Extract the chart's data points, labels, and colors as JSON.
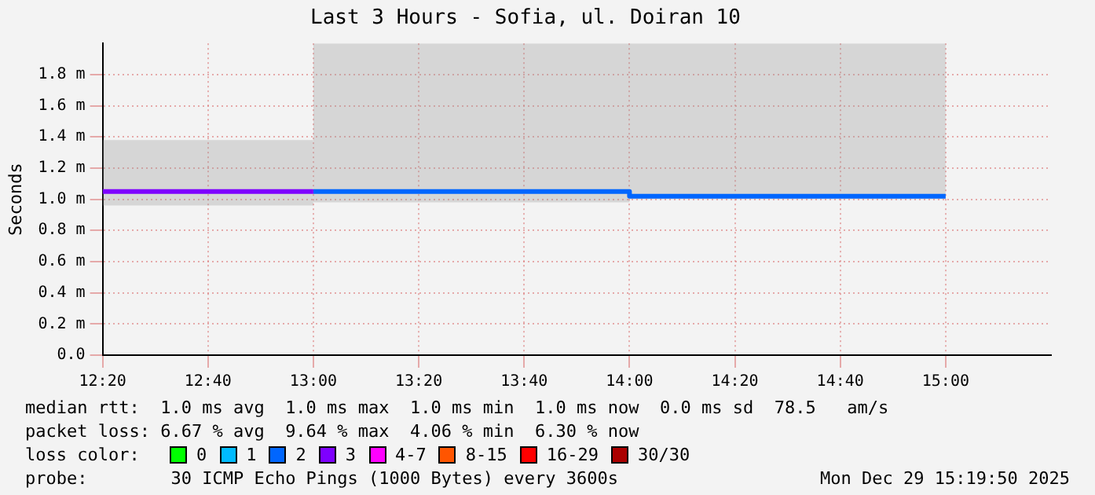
{
  "chart_data": {
    "type": "line",
    "title": "Last 3 Hours - Sofia, ul. Doiran 10",
    "ylabel": "Seconds",
    "series": [
      {
        "color": "#7e00ff",
        "x": [
          12.3333,
          13
        ],
        "values": [
          1.05,
          1.05
        ],
        "lower": [
          0.96,
          0.96
        ],
        "upper": [
          1.38,
          1.38
        ]
      },
      {
        "color": "#0066ff",
        "x": [
          13,
          14,
          14,
          15
        ],
        "values": [
          1.05,
          1.05,
          1.02,
          1.02
        ],
        "lower": [
          0.98,
          0.98,
          1.0,
          1.0
        ],
        "upper": [
          2.0,
          2.0,
          2.0,
          2.0
        ]
      }
    ],
    "xlim": [
      12.3333,
      15.3333
    ],
    "xticks": [
      {
        "value": 12.3333,
        "label": "12:20"
      },
      {
        "value": 12.6667,
        "label": "12:40"
      },
      {
        "value": 13,
        "label": "13:00"
      },
      {
        "value": 13.3333,
        "label": "13:20"
      },
      {
        "value": 13.6667,
        "label": "13:40"
      },
      {
        "value": 14,
        "label": "14:00"
      },
      {
        "value": 14.3333,
        "label": "14:20"
      },
      {
        "value": 14.6667,
        "label": "14:40"
      },
      {
        "value": 15,
        "label": "15:00"
      }
    ],
    "ylim": [
      0,
      2.0
    ],
    "yticks": [
      {
        "value": 0,
        "label": "0.0"
      },
      {
        "value": 0.2,
        "label": "0.2 m"
      },
      {
        "value": 0.4,
        "label": "0.4 m"
      },
      {
        "value": 0.6,
        "label": "0.6 m"
      },
      {
        "value": 0.8,
        "label": "0.8 m"
      },
      {
        "value": 1.0,
        "label": "1.0 m"
      },
      {
        "value": 1.2,
        "label": "1.2 m"
      },
      {
        "value": 1.4,
        "label": "1.4 m"
      },
      {
        "value": 1.6,
        "label": "1.6 m"
      },
      {
        "value": 1.8,
        "label": "1.8 m"
      }
    ],
    "grid": true,
    "marker": "none",
    "annotations": [
      "median rtt:  1.0 ms avg  1.0 ms max  1.0 ms min  1.0 ms now  0.0 ms sd  78.5   am/s",
      "packet loss: 6.67 % avg  9.64 % max  4.06 % min  6.30 % now",
      "loss color:",
      "0",
      "1",
      "2",
      "3",
      "4-7",
      "8-15",
      "16-29",
      "30/30",
      "probe:        30 ICMP Echo Pings (1000 Bytes) every 3600s",
      "Mon Dec 29 15:19:50 2025"
    ]
  }
}
